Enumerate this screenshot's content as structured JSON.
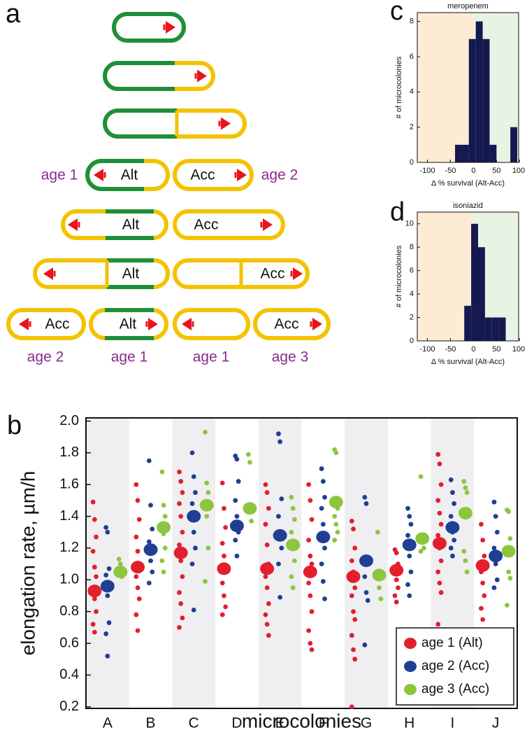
{
  "panel_labels": [
    "a",
    "b",
    "c",
    "d"
  ],
  "diagram": {
    "cell_labels": [
      "Alt",
      "Acc",
      "Alt",
      "Acc",
      "Alt",
      "Acc",
      "Acc",
      "Alt",
      "Acc"
    ],
    "age_labels": [
      "age 1",
      "age 2",
      "age 2",
      "age 1",
      "age 1",
      "age 3"
    ]
  },
  "chart_data": [
    {
      "type": "strip",
      "ylabel": "elongation rate, µm/h",
      "xlabel": "microcolonies",
      "categories": [
        "A",
        "B",
        "C",
        "D",
        "E",
        "F",
        "G",
        "H",
        "I",
        "J"
      ],
      "ylim": [
        0.19,
        2.02
      ],
      "yticks": [
        0.2,
        0.4,
        0.6,
        0.8,
        {
          "value": 1,
          "label": "1.0"
        },
        1.2,
        1.4,
        1.6,
        1.8,
        {
          "value": 2,
          "label": "2.0"
        }
      ],
      "legend": "lower right",
      "series": [
        {
          "name": "age 1 (Alt)",
          "color": "#e31e2d",
          "values": [
            0.93,
            1.08,
            1.17,
            1.07,
            1.07,
            1.05,
            1.02,
            1.06,
            1.23,
            1.09
          ],
          "points": [
            [
              1.49,
              1.38,
              1.27,
              1.18,
              1.08,
              1.02,
              0.95,
              0.88,
              0.8,
              0.72,
              0.67
            ],
            [
              1.6,
              1.5,
              1.38,
              1.27,
              1.18,
              1.1,
              1.02,
              0.95,
              0.88,
              0.78,
              0.68
            ],
            [
              1.68,
              1.62,
              1.55,
              1.48,
              1.4,
              1.3,
              1.22,
              1.12,
              1.02,
              0.92,
              0.85,
              0.76,
              0.7
            ],
            [
              1.61,
              1.45,
              1.33,
              1.23,
              1.15,
              1.05,
              0.98,
              0.9,
              0.83,
              0.78
            ],
            [
              1.6,
              1.55,
              1.45,
              1.35,
              1.22,
              1.1,
              1.02,
              0.95,
              0.85,
              0.78,
              0.72,
              0.65
            ],
            [
              1.6,
              1.5,
              1.38,
              1.25,
              1.15,
              1.1,
              0.98,
              0.9,
              0.8,
              0.68,
              0.6,
              0.56
            ],
            [
              1.37,
              1.32,
              1.2,
              1.12,
              1.05,
              0.95,
              0.9,
              0.8,
              0.75,
              0.65,
              0.56,
              0.5,
              0.2
            ],
            [
              1.19,
              1.17,
              1.1,
              1.05,
              1.0,
              0.95,
              0.9,
              0.86
            ],
            [
              1.79,
              1.73,
              1.6,
              1.5,
              1.42,
              1.35,
              1.28,
              1.2,
              1.12,
              1.05,
              0.98,
              0.92,
              0.72
            ],
            [
              1.35,
              1.25,
              1.15,
              1.05,
              0.98,
              0.9,
              0.82,
              0.75,
              0.68,
              0.63
            ]
          ]
        },
        {
          "name": "age 2 (Acc)",
          "color": "#1f3f95",
          "values": [
            0.96,
            1.19,
            1.4,
            1.34,
            1.28,
            1.27,
            1.12,
            1.22,
            1.33,
            1.15
          ],
          "points": [
            [
              1.33,
              1.3,
              1.07,
              1.03,
              0.9,
              0.73,
              0.66,
              0.52
            ],
            [
              1.75,
              1.47,
              1.32,
              1.24,
              1.12,
              1.05,
              0.98
            ],
            [
              1.8,
              1.65,
              1.55,
              1.48,
              1.3,
              1.2,
              1.1,
              0.81
            ],
            [
              1.78,
              1.76,
              1.62,
              1.5,
              1.4,
              1.3,
              1.25,
              1.15
            ],
            [
              1.92,
              1.87,
              1.51,
              1.4,
              1.3,
              1.2,
              1.1,
              0.89
            ],
            [
              1.7,
              1.62,
              1.52,
              1.45,
              1.35,
              1.2,
              1.1,
              0.99,
              0.88
            ],
            [
              1.52,
              1.48,
              1.1,
              1.02,
              0.92,
              0.87,
              0.59
            ],
            [
              1.45,
              1.4,
              1.35,
              1.28,
              1.15,
              1.05,
              0.97,
              0.9
            ],
            [
              1.63,
              1.55,
              1.48,
              1.4,
              1.3,
              1.25,
              1.2,
              1.15
            ],
            [
              1.49,
              1.4,
              1.3,
              1.2,
              1.1,
              1.0,
              0.95
            ]
          ]
        },
        {
          "name": "age 3 (Acc)",
          "color": "#8cc63f",
          "values": [
            1.05,
            1.33,
            1.47,
            1.45,
            1.22,
            1.49,
            1.03,
            1.26,
            1.42,
            1.18
          ],
          "points": [
            [
              1.13,
              1.1,
              1.02
            ],
            [
              1.68,
              1.47,
              1.4,
              1.35,
              1.29,
              1.2,
              1.12,
              1.05
            ],
            [
              1.93,
              1.61,
              1.55,
              1.45,
              1.4,
              1.2,
              0.99
            ],
            [
              1.79,
              1.74,
              1.37
            ],
            [
              1.52,
              1.45,
              1.38,
              1.3,
              1.2,
              1.12,
              1.02,
              0.95
            ],
            [
              1.82,
              1.8,
              1.45,
              1.4,
              1.35,
              1.3,
              1.25
            ],
            [
              1.3,
              0.95,
              0.88
            ],
            [
              1.65,
              1.25,
              1.2,
              1.18
            ],
            [
              1.62,
              1.58,
              1.55,
              1.18,
              1.12,
              1.05
            ],
            [
              1.44,
              1.43,
              1.26,
              1.16,
              1.05,
              1.01,
              0.84
            ]
          ]
        }
      ]
    },
    {
      "type": "histogram",
      "title": "meropenem",
      "xlabel": "Δ % survival (Alt-Acc)",
      "ylabel": "# of microcolonies",
      "color": "#141a4f",
      "bins": [
        -40,
        -25,
        -10,
        5,
        20,
        35,
        50,
        65,
        80,
        95
      ],
      "counts": [
        1,
        1,
        7,
        8,
        7,
        1,
        0,
        0,
        2
      ],
      "xlim": [
        -122,
        98
      ],
      "xticks": [
        -100,
        -50,
        0,
        50,
        100
      ],
      "ylim": [
        0,
        8.5
      ],
      "yticks": [
        0,
        2,
        4,
        6,
        8
      ]
    },
    {
      "type": "histogram",
      "title": "isoniazid",
      "xlabel": "Δ % survival (Alt-Acc)",
      "ylabel": "# of microcolonies",
      "color": "#141a4f",
      "bins": [
        -20,
        -5,
        10,
        25,
        40,
        55,
        70
      ],
      "counts": [
        3,
        10,
        8,
        2,
        2,
        2
      ],
      "xlim": [
        -122,
        98
      ],
      "xticks": [
        -100,
        -50,
        0,
        50,
        100
      ],
      "ylim": [
        0,
        11
      ],
      "yticks": [
        0,
        2,
        4,
        6,
        8,
        10
      ]
    }
  ]
}
